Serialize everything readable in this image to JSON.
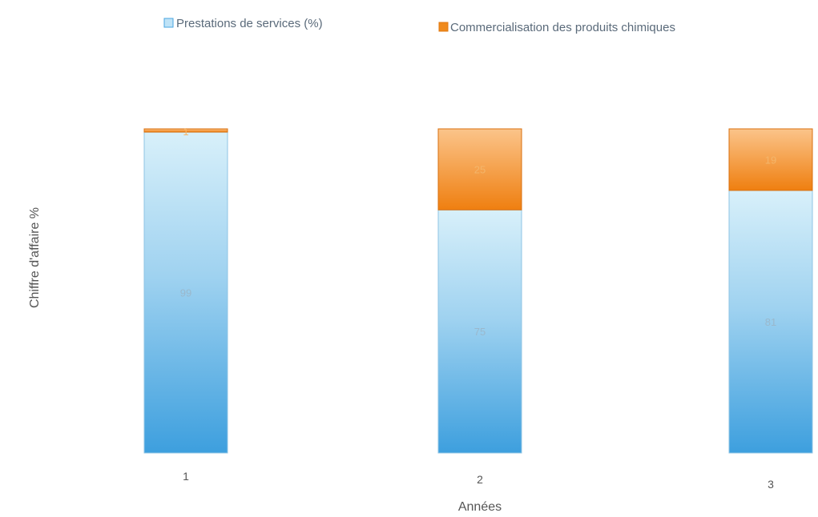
{
  "chart_data": {
    "type": "bar",
    "stacked": true,
    "orientation": "vertical",
    "categories": [
      "1",
      "2",
      "3"
    ],
    "series": [
      {
        "name": "Prestations de services (%)",
        "values": [
          99,
          75,
          81
        ],
        "color": "#4aa6e0",
        "label_color": "#9ab8cc"
      },
      {
        "name": "Commercialisation des produits chimiques",
        "values": [
          1,
          25,
          19
        ],
        "color": "#f08a1c",
        "label_color": "#f4b56a"
      }
    ],
    "title": "",
    "xlabel": "Années",
    "ylabel": "Chiffre d'affaire %",
    "ylim": [
      0,
      100
    ],
    "grid": false,
    "legend_position": "top"
  }
}
